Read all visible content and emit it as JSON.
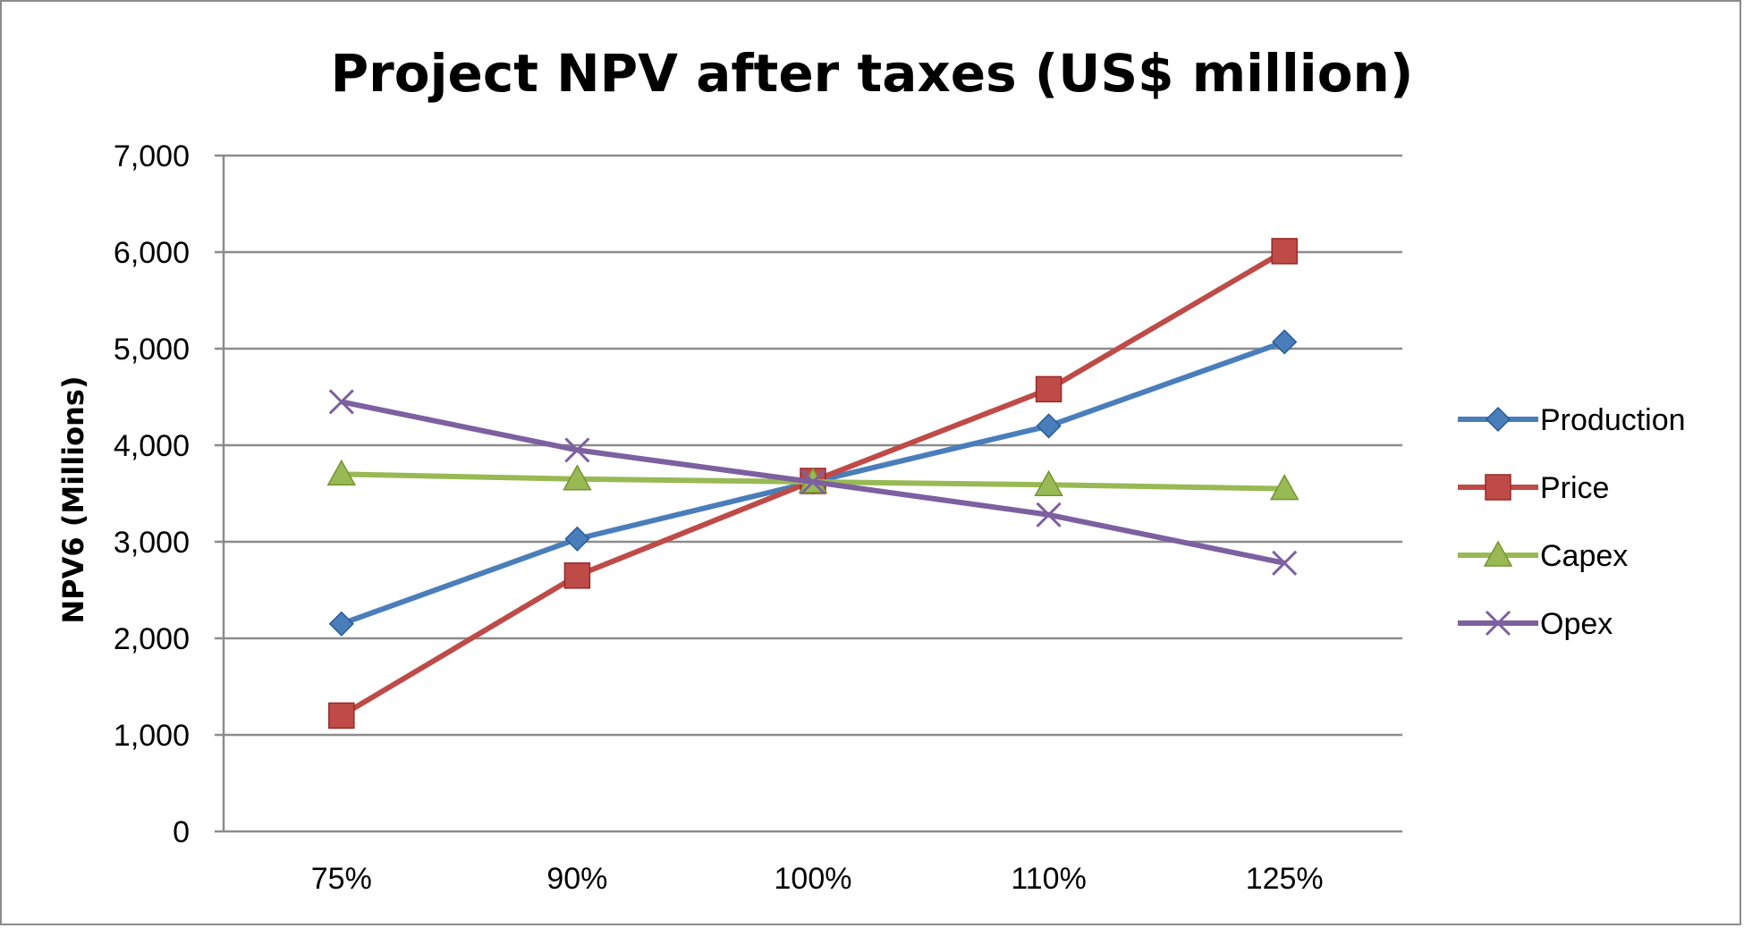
{
  "chart_data": {
    "type": "line",
    "title": "Project NPV after taxes (US$ million)",
    "xlabel": "",
    "ylabel": "NPV6 (Millions)",
    "categories": [
      "75%",
      "90%",
      "100%",
      "110%",
      "125%"
    ],
    "ylim": [
      0,
      7000
    ],
    "yticks": [
      0,
      1000,
      2000,
      3000,
      4000,
      5000,
      6000,
      7000
    ],
    "ytick_labels": [
      "0",
      "1,000",
      "2,000",
      "3,000",
      "4,000",
      "5,000",
      "6,000",
      "7,000"
    ],
    "grid": true,
    "legend_position": "right",
    "series": [
      {
        "name": "Production",
        "color": "#4a7ebb",
        "marker": "diamond",
        "values": [
          2150,
          3030,
          3620,
          4200,
          5070
        ]
      },
      {
        "name": "Price",
        "color": "#be4b48",
        "marker": "square",
        "values": [
          1200,
          2650,
          3630,
          4580,
          6010
        ]
      },
      {
        "name": "Capex",
        "color": "#98b954",
        "marker": "triangle",
        "values": [
          3700,
          3650,
          3620,
          3590,
          3550
        ]
      },
      {
        "name": "Opex",
        "color": "#7d60a0",
        "marker": "x",
        "values": [
          4450,
          3950,
          3620,
          3280,
          2780
        ]
      }
    ]
  }
}
